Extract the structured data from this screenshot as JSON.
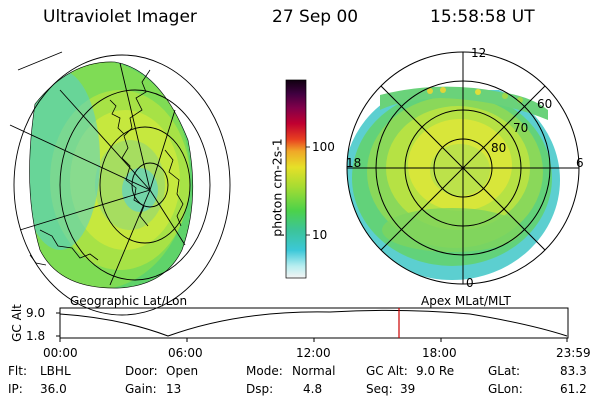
{
  "header": {
    "instrument": "Ultraviolet Imager",
    "date": "27 Sep 00",
    "time": "15:58:58 UT"
  },
  "geo_panel": {
    "label": "Geographic Lat/Lon"
  },
  "polar_panel": {
    "label": "Apex MLat/MLT",
    "mlt_labels": {
      "top": "12",
      "left": "18",
      "right": "6",
      "bottom": "0"
    },
    "lat_labels": [
      "60",
      "70",
      "80"
    ]
  },
  "colorbar": {
    "unit_label": "photon cm-2s-1",
    "ticks": [
      "100",
      "10"
    ],
    "scale": "log"
  },
  "altitude_plot": {
    "ylabel": "GC Alt",
    "y_ticks": [
      "9.0",
      "1.8"
    ],
    "x_ticks": [
      "00:00",
      "06:00",
      "12:00",
      "18:00",
      "23:59"
    ],
    "marker_time": "15:58:58",
    "marker_color": "#cc0000"
  },
  "status": {
    "row1": [
      {
        "key": "Flt:",
        "val": "LBHL"
      },
      {
        "key": "Door:",
        "val": "Open"
      },
      {
        "key": "Mode:",
        "val": "Normal"
      },
      {
        "key": "GC Alt:",
        "val": "9.0 Re"
      },
      {
        "key": "GLat:",
        "val": "83.3"
      }
    ],
    "row2": [
      {
        "key": "IP:",
        "val": "36.0"
      },
      {
        "key": "Gain:",
        "val": "13"
      },
      {
        "key": "Dsp:",
        "val": "4.8"
      },
      {
        "key": "Seq:",
        "val": "39"
      },
      {
        "key": "GLon:",
        "val": "61.2"
      }
    ]
  }
}
